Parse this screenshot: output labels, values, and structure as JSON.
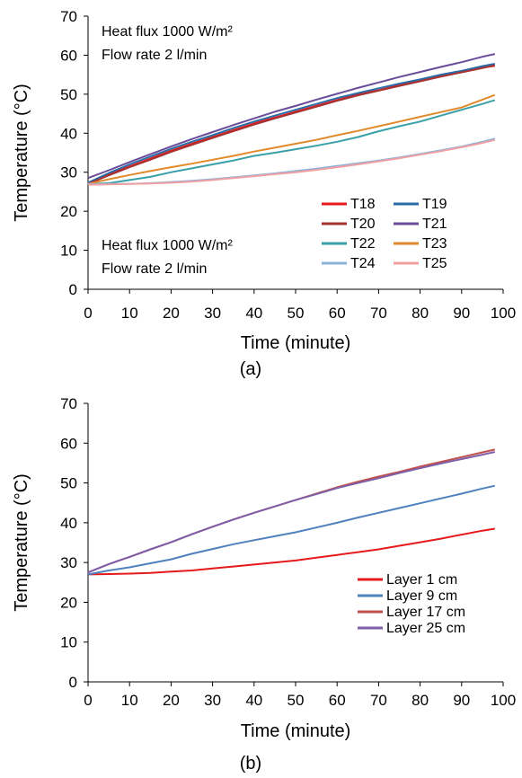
{
  "chart_data": [
    {
      "type": "line",
      "panel_label": "(a)",
      "annotations": [
        "Heat flux 1000 W/m²",
        "Flow rate 2 l/min"
      ],
      "xlabel": "Time (minute)",
      "ylabel": "Temperature (°C)",
      "xlim": [
        0,
        100
      ],
      "ylim": [
        0,
        70
      ],
      "xticks": [
        0,
        10,
        20,
        30,
        40,
        50,
        60,
        70,
        80,
        90,
        100
      ],
      "yticks": [
        0,
        10,
        20,
        30,
        40,
        50,
        60,
        70
      ],
      "grid": false,
      "legend_position": "bottom-right",
      "legend_columns": 2,
      "x": [
        0,
        5,
        10,
        15,
        20,
        25,
        30,
        35,
        40,
        45,
        50,
        55,
        60,
        65,
        70,
        75,
        80,
        85,
        90,
        95,
        98
      ],
      "series": [
        {
          "name": "T18",
          "color": "#e41a1c",
          "values": [
            27,
            29.5,
            31.5,
            33.5,
            35.5,
            37.3,
            39,
            40.8,
            42.5,
            44,
            45.5,
            47,
            48.5,
            50,
            51,
            52.3,
            53.5,
            54.7,
            55.8,
            56.8,
            57.3
          ]
        },
        {
          "name": "T19",
          "color": "#2a6ca6",
          "values": [
            27.3,
            29.8,
            32,
            34,
            36,
            37.8,
            39.5,
            41.3,
            43,
            44.5,
            46,
            47.5,
            49,
            50.3,
            51.5,
            52.7,
            53.8,
            55,
            56,
            57.2,
            57.8
          ]
        },
        {
          "name": "T20",
          "color": "#a83232",
          "values": [
            27,
            29.2,
            31.3,
            33.2,
            35.2,
            37,
            38.8,
            40.5,
            42.2,
            43.8,
            45.3,
            46.8,
            48.3,
            49.7,
            50.9,
            52.1,
            53.3,
            54.5,
            55.6,
            56.7,
            57.4
          ]
        },
        {
          "name": "T21",
          "color": "#6b4c9a",
          "values": [
            28.5,
            30.5,
            32.6,
            34.6,
            36.6,
            38.5,
            40.3,
            42.1,
            43.8,
            45.5,
            47,
            48.6,
            50.1,
            51.6,
            53,
            54.4,
            55.7,
            57,
            58.2,
            59.6,
            60.3
          ]
        },
        {
          "name": "T22",
          "color": "#3aa0a8",
          "values": [
            27,
            27.2,
            28,
            28.8,
            30,
            31,
            32,
            33,
            34.2,
            35,
            35.9,
            36.8,
            37.8,
            39,
            40.5,
            41.8,
            43,
            44.5,
            46,
            47.5,
            48.5
          ]
        },
        {
          "name": "T23",
          "color": "#e08a2c",
          "values": [
            27,
            28.2,
            29.3,
            30.3,
            31.3,
            32.2,
            33.2,
            34.2,
            35.3,
            36.3,
            37.3,
            38.3,
            39.5,
            40.6,
            41.8,
            43,
            44.2,
            45.4,
            46.6,
            48.6,
            49.8
          ]
        },
        {
          "name": "T24",
          "color": "#8db2da",
          "values": [
            27,
            27,
            27,
            27.2,
            27.5,
            27.8,
            28.2,
            28.7,
            29.2,
            29.7,
            30.3,
            30.9,
            31.6,
            32.3,
            33,
            33.8,
            34.7,
            35.6,
            36.6,
            37.8,
            38.6
          ]
        },
        {
          "name": "T25",
          "color": "#f0a0a0",
          "values": [
            26.8,
            26.9,
            27,
            27.1,
            27.3,
            27.6,
            28,
            28.5,
            29,
            29.5,
            30,
            30.6,
            31.3,
            32,
            32.8,
            33.6,
            34.5,
            35.4,
            36.4,
            37.5,
            38.3
          ]
        }
      ]
    },
    {
      "type": "line",
      "panel_label": "(b)",
      "annotations": [
        "Heat flux 1000 W/m²",
        "Flow rate 2 l/min"
      ],
      "xlabel": "Time (minute)",
      "ylabel": "Temperature (°C)",
      "xlim": [
        0,
        100
      ],
      "ylim": [
        0,
        70
      ],
      "xticks": [
        0,
        10,
        20,
        30,
        40,
        50,
        60,
        70,
        80,
        90,
        100
      ],
      "yticks": [
        0,
        10,
        20,
        30,
        40,
        50,
        60,
        70
      ],
      "grid": false,
      "legend_position": "bottom-right",
      "legend_columns": 1,
      "x": [
        0,
        5,
        10,
        15,
        20,
        25,
        30,
        35,
        40,
        45,
        50,
        55,
        60,
        65,
        70,
        75,
        80,
        85,
        90,
        95,
        98
      ],
      "series": [
        {
          "name": "Layer 1 cm",
          "color": "#e41a1c",
          "values": [
            27,
            27.1,
            27.2,
            27.4,
            27.7,
            28,
            28.5,
            29,
            29.5,
            30,
            30.5,
            31.2,
            31.9,
            32.6,
            33.3,
            34.2,
            35.1,
            36,
            37,
            38,
            38.5
          ]
        },
        {
          "name": "Layer 9 cm",
          "color": "#4f81bd",
          "values": [
            27,
            28,
            28.8,
            29.8,
            30.8,
            32.2,
            33.4,
            34.6,
            35.6,
            36.6,
            37.6,
            38.8,
            40,
            41.3,
            42.5,
            43.7,
            44.9,
            46.1,
            47.3,
            48.6,
            49.3
          ]
        },
        {
          "name": "Layer 17 cm",
          "color": "#c0504d",
          "values": [
            27.5,
            29.6,
            31.4,
            33.3,
            35.1,
            37.1,
            39,
            40.8,
            42.5,
            44.1,
            45.7,
            47.3,
            48.9,
            50.3,
            51.6,
            52.8,
            54.1,
            55.3,
            56.5,
            57.7,
            58.4
          ]
        },
        {
          "name": "Layer 25 cm",
          "color": "#7e5fa8",
          "values": [
            27.5,
            29.6,
            31.4,
            33.3,
            35.1,
            37.1,
            39,
            40.8,
            42.5,
            44.1,
            45.7,
            47.2,
            48.7,
            50,
            51.2,
            52.5,
            53.7,
            54.9,
            56,
            57.1,
            57.8
          ]
        }
      ]
    }
  ]
}
